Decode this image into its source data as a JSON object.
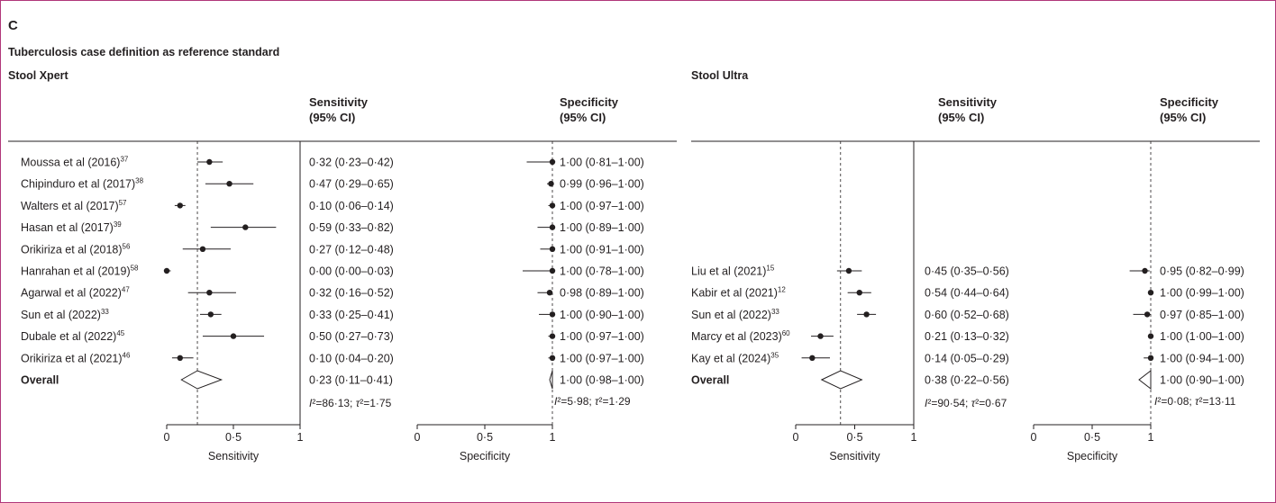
{
  "panel_label": "C",
  "figure_title": "Tuberculosis case definition as reference standard",
  "colors": {
    "frame": "#b0377a",
    "ink": "#231f20"
  },
  "chart_data": [
    {
      "type": "forest",
      "title": "Stool Xpert",
      "columns": {
        "sens": [
          "Sensitivity",
          "(95% CI)"
        ],
        "spec": [
          "Specificity",
          "(95% CI)"
        ]
      },
      "studies": [
        {
          "name": "Moussa et al (2016)",
          "ref": "37",
          "sens": [
            0.32,
            0.23,
            0.42
          ],
          "sens_label": "0·32 (0·23–0·42)",
          "spec": [
            1.0,
            0.81,
            1.0
          ],
          "spec_label": "1·00 (0·81–1·00)"
        },
        {
          "name": "Chipinduro et al (2017)",
          "ref": "38",
          "sens": [
            0.47,
            0.29,
            0.65
          ],
          "sens_label": "0·47 (0·29–0·65)",
          "spec": [
            0.99,
            0.96,
            1.0
          ],
          "spec_label": "0·99 (0·96–1·00)"
        },
        {
          "name": "Walters et al (2017)",
          "ref": "57",
          "sens": [
            0.1,
            0.06,
            0.14
          ],
          "sens_label": "0·10 (0·06–0·14)",
          "spec": [
            1.0,
            0.97,
            1.0
          ],
          "spec_label": "1·00 (0·97–1·00)"
        },
        {
          "name": "Hasan et al (2017)",
          "ref": "39",
          "sens": [
            0.59,
            0.33,
            0.82
          ],
          "sens_label": "0·59 (0·33–0·82)",
          "spec": [
            1.0,
            0.89,
            1.0
          ],
          "spec_label": "1·00 (0·89–1·00)"
        },
        {
          "name": "Orikiriza et al (2018)",
          "ref": "56",
          "sens": [
            0.27,
            0.12,
            0.48
          ],
          "sens_label": "0·27 (0·12–0·48)",
          "spec": [
            1.0,
            0.91,
            1.0
          ],
          "spec_label": "1·00 (0·91–1·00)"
        },
        {
          "name": "Hanrahan et al (2019)",
          "ref": "58",
          "sens": [
            0.0,
            0.0,
            0.03
          ],
          "sens_label": "0·00 (0·00–0·03)",
          "spec": [
            1.0,
            0.78,
            1.0
          ],
          "spec_label": "1·00 (0·78–1·00)"
        },
        {
          "name": "Agarwal et al (2022)",
          "ref": "47",
          "sens": [
            0.32,
            0.16,
            0.52
          ],
          "sens_label": "0·32 (0·16–0·52)",
          "spec": [
            0.98,
            0.89,
            1.0
          ],
          "spec_label": "0·98 (0·89–1·00)"
        },
        {
          "name": "Sun et al (2022)",
          "ref": "33",
          "sens": [
            0.33,
            0.25,
            0.41
          ],
          "sens_label": "0·33 (0·25–0·41)",
          "spec": [
            1.0,
            0.9,
            1.0
          ],
          "spec_label": "1·00 (0·90–1·00)"
        },
        {
          "name": "Dubale et al (2022)",
          "ref": "45",
          "sens": [
            0.5,
            0.27,
            0.73
          ],
          "sens_label": "0·50 (0·27–0·73)",
          "spec": [
            1.0,
            0.97,
            1.0
          ],
          "spec_label": "1·00 (0·97–1·00)"
        },
        {
          "name": "Orikiriza et al (2021)",
          "ref": "46",
          "sens": [
            0.1,
            0.04,
            0.2
          ],
          "sens_label": "0·10 (0·04–0·20)",
          "spec": [
            1.0,
            0.97,
            1.0
          ],
          "spec_label": "1·00 (0·97–1·00)"
        }
      ],
      "overall": {
        "name": "Overall",
        "sens": [
          0.23,
          0.11,
          0.41
        ],
        "sens_label": "0·23 (0·11–0·41)",
        "spec": [
          1.0,
          0.98,
          1.0
        ],
        "spec_label": "1·00 (0·98–1·00)"
      },
      "heterogeneity": {
        "sens": "I²=86·13; τ²=1·75",
        "spec": "I²=5·98; τ²=1·29"
      },
      "axes": {
        "sens": {
          "label": "Sensitivity",
          "ticks": [
            0,
            0.5,
            1
          ],
          "tick_labels": [
            "0",
            "0·5",
            "1"
          ],
          "range": [
            0,
            1
          ]
        },
        "spec": {
          "label": "Specificity",
          "ticks": [
            0,
            0.5,
            1
          ],
          "tick_labels": [
            "0",
            "0·5",
            "1"
          ],
          "range": [
            0,
            1
          ]
        }
      }
    },
    {
      "type": "forest",
      "title": "Stool Ultra",
      "columns": {
        "sens": [
          "Sensitivity",
          "(95% CI)"
        ],
        "spec": [
          "Specificity",
          "(95% CI)"
        ]
      },
      "studies": [
        {
          "name": "Liu et al (2021)",
          "ref": "15",
          "sens": [
            0.45,
            0.35,
            0.56
          ],
          "sens_label": "0·45 (0·35–0·56)",
          "spec": [
            0.95,
            0.82,
            0.99
          ],
          "spec_label": "0·95 (0·82–0·99)"
        },
        {
          "name": "Kabir et al (2021)",
          "ref": "12",
          "sens": [
            0.54,
            0.44,
            0.64
          ],
          "sens_label": "0·54 (0·44–0·64)",
          "spec": [
            1.0,
            0.99,
            1.0
          ],
          "spec_label": "1·00 (0·99–1·00)"
        },
        {
          "name": "Sun et al (2022)",
          "ref": "33",
          "sens": [
            0.6,
            0.52,
            0.68
          ],
          "sens_label": "0·60 (0·52–0·68)",
          "spec": [
            0.97,
            0.85,
            1.0
          ],
          "spec_label": "0·97 (0·85–1·00)"
        },
        {
          "name": "Marcy et al (2023)",
          "ref": "60",
          "sens": [
            0.21,
            0.13,
            0.32
          ],
          "sens_label": "0·21 (0·13–0·32)",
          "spec": [
            1.0,
            1.0,
            1.0
          ],
          "spec_label": "1·00 (1·00–1·00)"
        },
        {
          "name": "Kay et al (2024)",
          "ref": "35",
          "sens": [
            0.14,
            0.05,
            0.29
          ],
          "sens_label": "0·14 (0·05–0·29)",
          "spec": [
            1.0,
            0.94,
            1.0
          ],
          "spec_label": "1·00 (0·94–1·00)"
        }
      ],
      "overall": {
        "name": "Overall",
        "sens": [
          0.38,
          0.22,
          0.56
        ],
        "sens_label": "0·38 (0·22–0·56)",
        "spec": [
          1.0,
          0.9,
          1.0
        ],
        "spec_label": "1·00 (0·90–1·00)"
      },
      "heterogeneity": {
        "sens": "I²=90·54; τ²=0·67",
        "spec": "I²=0·08; τ²=13·11"
      },
      "axes": {
        "sens": {
          "label": "Sensitivity",
          "ticks": [
            0,
            0.5,
            1
          ],
          "tick_labels": [
            "0",
            "0·5",
            "1"
          ],
          "range": [
            0,
            1
          ]
        },
        "spec": {
          "label": "Specificity",
          "ticks": [
            0,
            0.5,
            1
          ],
          "tick_labels": [
            "0",
            "0·5",
            "1"
          ],
          "range": [
            0,
            1
          ]
        }
      }
    }
  ]
}
